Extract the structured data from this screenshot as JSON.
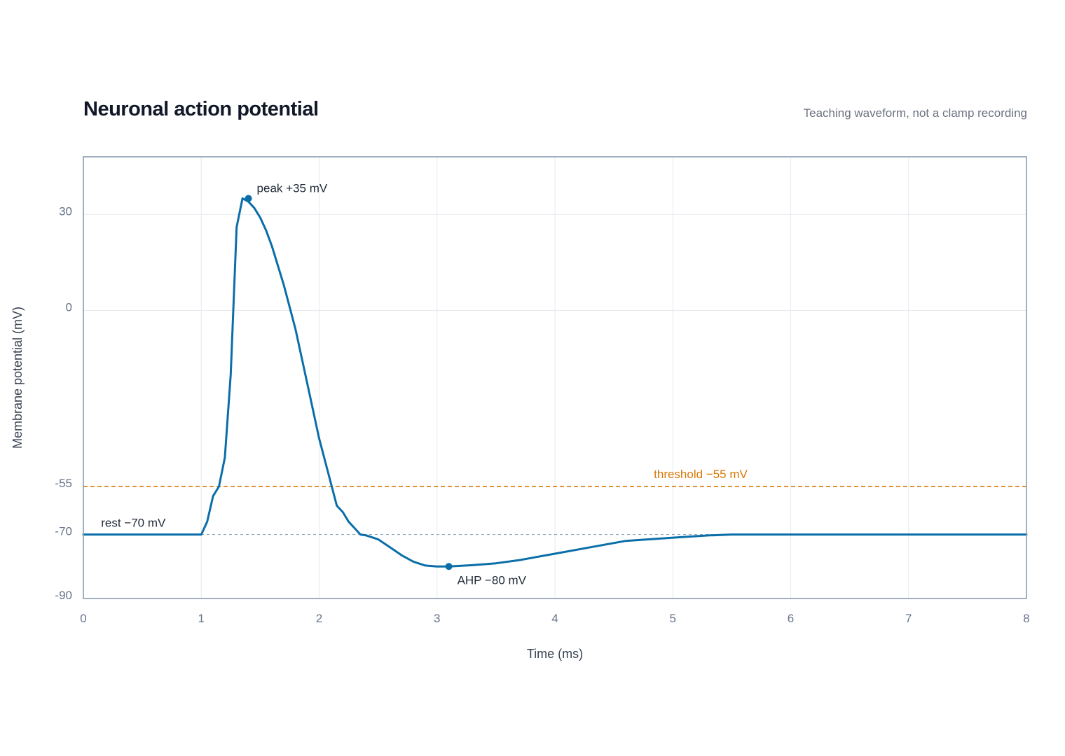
{
  "header": {
    "title": "Neuronal action potential",
    "subtitle": "Teaching waveform, not a clamp recording"
  },
  "chart_data": {
    "type": "line",
    "title": "Neuronal action potential",
    "subtitle": "Teaching waveform, not a clamp recording",
    "xlabel": "Time (ms)",
    "ylabel": "Membrane potential (mV)",
    "xlim": [
      0,
      8
    ],
    "ylim": [
      -90,
      48
    ],
    "x_ticks": [
      "0",
      "1",
      "2",
      "3",
      "4",
      "5",
      "6",
      "7",
      "8"
    ],
    "y_ticks": [
      "30",
      "0",
      "-55",
      "-70",
      "-90"
    ],
    "grid": true,
    "series": [
      {
        "color": "#0a6ea8",
        "x": [
          0,
          0.5,
          1.0,
          1.05,
          1.1,
          1.15,
          1.2,
          1.25,
          1.3,
          1.35,
          1.4,
          1.45,
          1.5,
          1.55,
          1.6,
          1.65,
          1.7,
          1.8,
          1.9,
          2.0,
          2.1,
          2.15,
          2.2,
          2.25,
          2.3,
          2.35,
          2.4,
          2.5,
          2.6,
          2.7,
          2.8,
          2.9,
          3.0,
          3.1,
          3.3,
          3.5,
          3.7,
          4.0,
          4.3,
          4.6,
          5.0,
          5.3,
          5.5,
          6.0,
          7.0,
          8.0
        ],
        "y": [
          -70,
          -70,
          -70,
          -66,
          -58,
          -55,
          -46,
          -20,
          26,
          35,
          34,
          32,
          29,
          25,
          20,
          14,
          8,
          -6,
          -23,
          -40,
          -54,
          -61,
          -63,
          -66,
          -68,
          -70,
          -70.3,
          -71.5,
          -74,
          -76.5,
          -78.5,
          -79.7,
          -80,
          -80,
          -79.6,
          -79,
          -78,
          -76,
          -74,
          -72,
          -71,
          -70.3,
          -70,
          -70,
          -70,
          -70
        ]
      }
    ],
    "reference_lines": [
      {
        "label": "threshold −55 mV",
        "y": -55,
        "color": "#d97706",
        "style": "dashed"
      },
      {
        "label": "",
        "y": -70,
        "color": "#94a3b8",
        "style": "dashed"
      }
    ],
    "annotations": [
      {
        "text": "peak +35 mV",
        "x": 1.4,
        "y": 35,
        "marker": true
      },
      {
        "text": "AHP −80 mV",
        "x": 3.1,
        "y": -80,
        "marker": true
      },
      {
        "text": "rest −70 mV",
        "x": 0.15,
        "y": -70,
        "marker": false
      }
    ]
  }
}
